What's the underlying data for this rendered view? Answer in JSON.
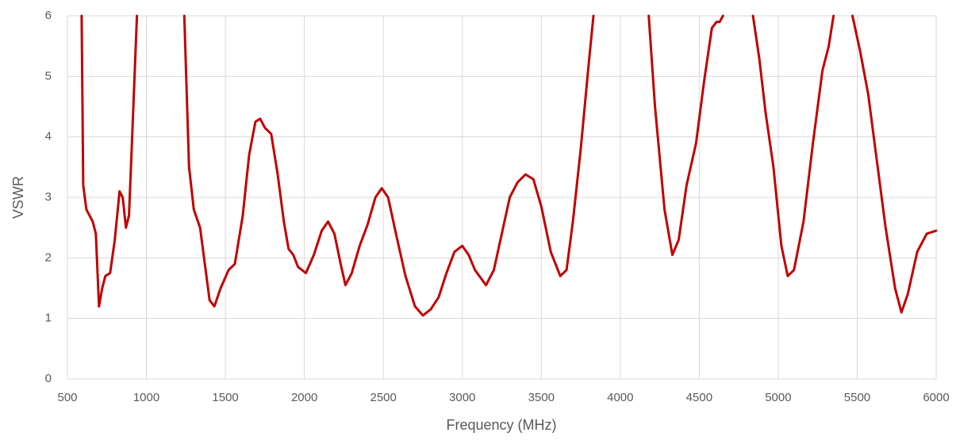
{
  "chart_data": {
    "type": "line",
    "x_label": "Frequency (MHz)",
    "y_label": "VSWR",
    "x": [
      590,
      600,
      620,
      660,
      680,
      700,
      720,
      740,
      770,
      800,
      830,
      850,
      870,
      890,
      910,
      940,
      1090,
      1240,
      1270,
      1300,
      1340,
      1400,
      1430,
      1470,
      1520,
      1560,
      1610,
      1650,
      1690,
      1720,
      1750,
      1790,
      1830,
      1870,
      1900,
      1930,
      1960,
      2010,
      2060,
      2110,
      2150,
      2190,
      2230,
      2260,
      2300,
      2350,
      2400,
      2450,
      2490,
      2530,
      2580,
      2640,
      2700,
      2750,
      2800,
      2850,
      2900,
      2950,
      3000,
      3040,
      3080,
      3150,
      3200,
      3250,
      3300,
      3350,
      3400,
      3450,
      3500,
      3560,
      3620,
      3660,
      3700,
      3750,
      3800,
      3830,
      4000,
      4180,
      4220,
      4280,
      4330,
      4370,
      4420,
      4480,
      4530,
      4580,
      4610,
      4630,
      4650,
      4750,
      4840,
      4880,
      4920,
      4970,
      5020,
      5060,
      5100,
      5160,
      5220,
      5280,
      5320,
      5350,
      5410,
      5470,
      5520,
      5570,
      5620,
      5680,
      5740,
      5780,
      5820,
      5880,
      5940,
      6000
    ],
    "values": [
      6,
      3.2,
      2.8,
      2.6,
      2.4,
      1.2,
      1.5,
      1.7,
      1.75,
      2.3,
      3.1,
      3.0,
      2.5,
      2.7,
      4.0,
      6,
      null,
      6,
      3.5,
      2.8,
      2.5,
      1.3,
      1.2,
      1.5,
      1.8,
      1.9,
      2.7,
      3.7,
      4.25,
      4.3,
      4.15,
      4.05,
      3.4,
      2.6,
      2.15,
      2.05,
      1.85,
      1.75,
      2.05,
      2.45,
      2.6,
      2.4,
      1.9,
      1.55,
      1.75,
      2.2,
      2.55,
      3.0,
      3.15,
      3.0,
      2.4,
      1.7,
      1.2,
      1.05,
      1.15,
      1.35,
      1.75,
      2.1,
      2.2,
      2.05,
      1.8,
      1.55,
      1.8,
      2.4,
      3.0,
      3.25,
      3.38,
      3.3,
      2.85,
      2.1,
      1.7,
      1.8,
      2.6,
      3.8,
      5.2,
      6,
      null,
      6,
      4.5,
      2.8,
      2.05,
      2.3,
      3.2,
      3.9,
      4.9,
      5.8,
      5.9,
      5.9,
      6,
      null,
      6,
      5.3,
      4.4,
      3.5,
      2.2,
      1.7,
      1.8,
      2.6,
      3.9,
      5.1,
      5.5,
      6,
      null,
      6,
      5.4,
      4.7,
      3.7,
      2.5,
      1.5,
      1.1,
      1.4,
      2.1,
      2.4,
      2.45
    ],
    "color": "#c00000",
    "xlim": [
      500,
      6000
    ],
    "xticks": [
      500,
      1000,
      1500,
      2000,
      2500,
      3000,
      3500,
      4000,
      4500,
      5000,
      5500,
      6000
    ],
    "ylim": [
      0,
      6
    ],
    "yticks": [
      0,
      1,
      2,
      3,
      4,
      5,
      6
    ],
    "grid": true
  }
}
